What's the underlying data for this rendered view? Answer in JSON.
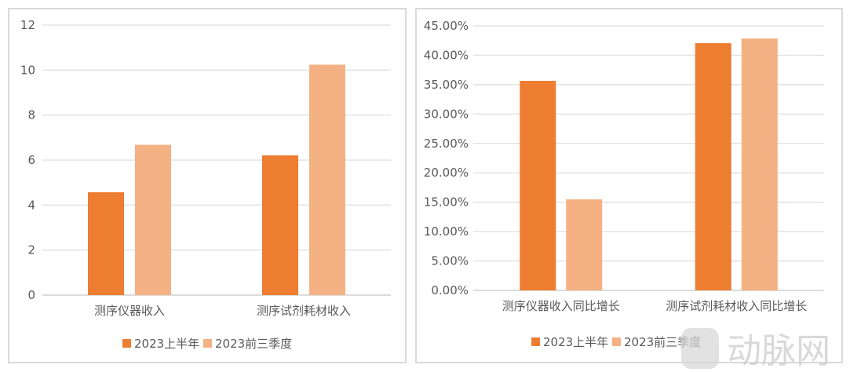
{
  "colors": {
    "series1": "#ED7D31",
    "series2": "#F4B183",
    "grid": "#E3E3E3",
    "text": "#595959"
  },
  "legend": {
    "series1": "2023上半年",
    "series2": "2023前三季度"
  },
  "watermark": {
    "text": "动脉网"
  },
  "left_chart": {
    "yticks": [
      "0",
      "2",
      "4",
      "6",
      "8",
      "10",
      "12"
    ],
    "categories": [
      "测序仪器收入",
      "测序试剂耗材收入"
    ]
  },
  "right_chart": {
    "yticks": [
      "0.00%",
      "5.00%",
      "10.00%",
      "15.00%",
      "20.00%",
      "25.00%",
      "30.00%",
      "35.00%",
      "40.00%",
      "45.00%"
    ],
    "categories": [
      "测序仪器收入同比增长",
      "测序试剂耗材收入同比增长"
    ]
  },
  "chart_data": [
    {
      "type": "bar",
      "title": "",
      "xlabel": "",
      "ylabel": "",
      "categories": [
        "测序仪器收入",
        "测序试剂耗材收入"
      ],
      "series": [
        {
          "name": "2023上半年",
          "values": [
            4.57,
            6.21
          ]
        },
        {
          "name": "2023前三季度",
          "values": [
            6.68,
            10.24
          ]
        }
      ],
      "ylim": [
        0,
        12
      ],
      "yticks": [
        0,
        2,
        4,
        6,
        8,
        10,
        12
      ],
      "grid": true,
      "legend_position": "bottom"
    },
    {
      "type": "bar",
      "title": "",
      "xlabel": "",
      "ylabel": "",
      "categories": [
        "测序仪器收入同比增长",
        "测序试剂耗材收入同比增长"
      ],
      "series": [
        {
          "name": "2023上半年",
          "values": [
            35.65,
            42.06
          ]
        },
        {
          "name": "2023前三季度",
          "values": [
            15.49,
            42.86
          ]
        }
      ],
      "ylim": [
        0,
        45
      ],
      "yticks": [
        "0.00%",
        "5.00%",
        "10.00%",
        "15.00%",
        "20.00%",
        "25.00%",
        "30.00%",
        "35.00%",
        "40.00%",
        "45.00%"
      ],
      "unit": "%",
      "grid": true,
      "legend_position": "bottom"
    }
  ]
}
